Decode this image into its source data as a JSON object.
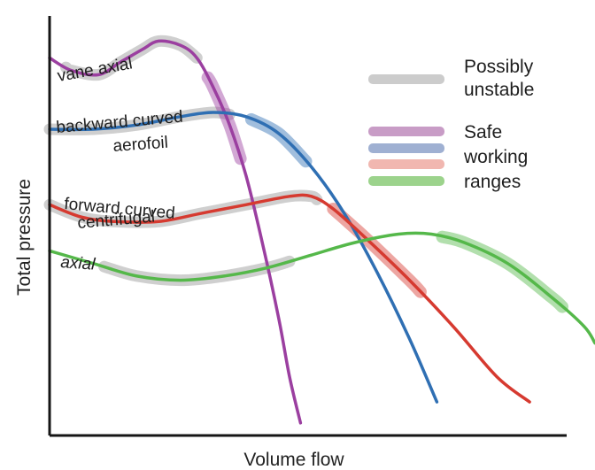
{
  "chart_data": {
    "type": "line",
    "title": "",
    "xlabel": "Volume flow",
    "ylabel": "Total pressure",
    "grid": false,
    "axis_tick_labels": false,
    "xlim": [
      0,
      100
    ],
    "ylim": [
      0,
      100
    ],
    "series": [
      {
        "name": "vane axial",
        "color": "#9b3fa0",
        "unstable_band": [
          3,
          27
        ],
        "safe_band": [
          29,
          35
        ],
        "points": [
          [
            0,
            90
          ],
          [
            4,
            87
          ],
          [
            9,
            86
          ],
          [
            13,
            89
          ],
          [
            17,
            92
          ],
          [
            20,
            94
          ],
          [
            24,
            93
          ],
          [
            27,
            90
          ],
          [
            30,
            83
          ],
          [
            33,
            74
          ],
          [
            36,
            62
          ],
          [
            39,
            46
          ],
          [
            42,
            28
          ],
          [
            44,
            14
          ],
          [
            46,
            3
          ]
        ]
      },
      {
        "name": "backward curved aerofoil",
        "color": "#2f6fb3",
        "unstable_band": [
          0,
          33
        ],
        "safe_band": [
          37,
          47
        ],
        "points": [
          [
            0,
            73
          ],
          [
            8,
            73
          ],
          [
            16,
            74
          ],
          [
            24,
            76
          ],
          [
            30,
            77
          ],
          [
            36,
            76
          ],
          [
            42,
            72
          ],
          [
            48,
            64
          ],
          [
            54,
            53
          ],
          [
            60,
            39
          ],
          [
            66,
            23
          ],
          [
            71,
            8
          ]
        ]
      },
      {
        "name": "forward curved centrifugal",
        "color": "#d63a30",
        "unstable_band": [
          0,
          49
        ],
        "safe_band": [
          52,
          68
        ],
        "points": [
          [
            0,
            55
          ],
          [
            6,
            52
          ],
          [
            12,
            51
          ],
          [
            20,
            51
          ],
          [
            28,
            53
          ],
          [
            36,
            55
          ],
          [
            44,
            57
          ],
          [
            48,
            57
          ],
          [
            52,
            54
          ],
          [
            58,
            47
          ],
          [
            66,
            37
          ],
          [
            74,
            26
          ],
          [
            82,
            14
          ],
          [
            88,
            8
          ]
        ]
      },
      {
        "name": "axial",
        "color": "#55b84a",
        "unstable_band": [
          10,
          44
        ],
        "safe_band": [
          72,
          94
        ],
        "points": [
          [
            0,
            44
          ],
          [
            8,
            41
          ],
          [
            16,
            38
          ],
          [
            24,
            37
          ],
          [
            32,
            38
          ],
          [
            40,
            40
          ],
          [
            48,
            43
          ],
          [
            56,
            46
          ],
          [
            64,
            48
          ],
          [
            70,
            48
          ],
          [
            76,
            46
          ],
          [
            84,
            41
          ],
          [
            92,
            33
          ],
          [
            98,
            26
          ],
          [
            100,
            22
          ]
        ]
      }
    ],
    "curve_labels": [
      {
        "series": "vane axial",
        "lines": [
          "vane axial"
        ]
      },
      {
        "series": "backward curved aerofoil",
        "lines": [
          "backward curved",
          "aerofoil"
        ]
      },
      {
        "series": "forward curved centrifugal",
        "lines": [
          "forward curved",
          "centrifugal"
        ]
      },
      {
        "series": "axial",
        "lines": [
          "axial"
        ]
      }
    ],
    "legend": {
      "placement": "top-right",
      "possibly_unstable": {
        "label_lines": [
          "Possibly",
          "unstable"
        ],
        "color": "#cccccc"
      },
      "safe": {
        "label_lines": [
          "Safe",
          "working",
          "ranges"
        ],
        "swatches": [
          "#c89cc6",
          "#9fb0d2",
          "#f1b7b0",
          "#9cd38c"
        ]
      }
    }
  }
}
